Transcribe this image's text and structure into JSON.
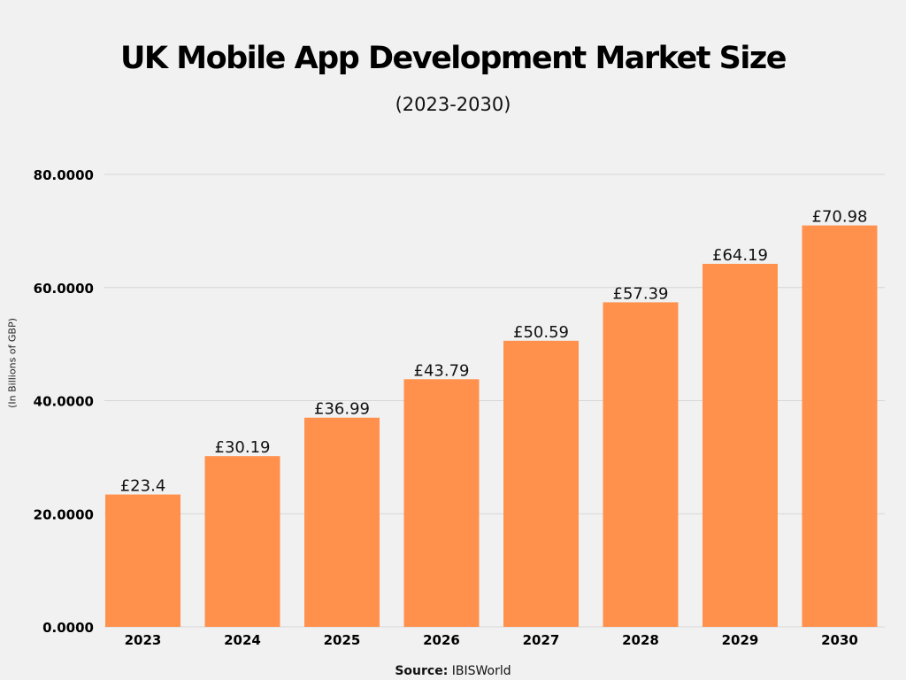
{
  "chart_data": {
    "type": "bar",
    "title": "UK Mobile App Development Market Size",
    "subtitle": "(2023-2030)",
    "ylabel": "(In Billions of GBP)",
    "xlabel": "",
    "categories": [
      "2023",
      "2024",
      "2025",
      "2026",
      "2027",
      "2028",
      "2029",
      "2030"
    ],
    "values": [
      23.4,
      30.19,
      36.99,
      43.79,
      50.59,
      57.39,
      64.19,
      70.98
    ],
    "data_labels": [
      "£23.4",
      "£30.19",
      "£36.99",
      "£43.79",
      "£50.59",
      "£57.39",
      "£64.19",
      "£70.98"
    ],
    "ylim": [
      0,
      80
    ],
    "yticks": [
      0,
      20,
      40,
      60,
      80
    ],
    "ytick_labels": [
      "0.0000",
      "20.0000",
      "40.0000",
      "60.0000",
      "80.0000"
    ],
    "grid": true,
    "bar_color": "#ff914d"
  },
  "source": {
    "label": "Source:",
    "value": "IBISWorld"
  }
}
